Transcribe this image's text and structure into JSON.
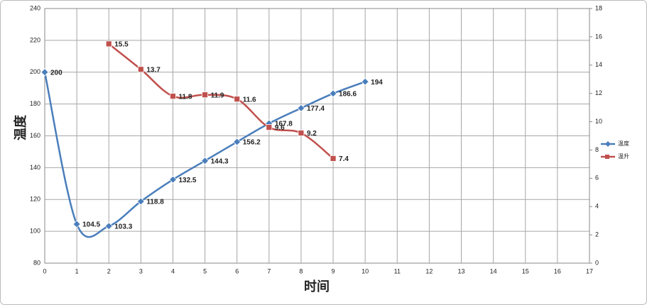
{
  "chart_data": {
    "type": "line",
    "x_label": "时间",
    "y_label": "温度",
    "xlim": [
      0,
      17
    ],
    "xticks": [
      0,
      1,
      2,
      3,
      4,
      5,
      6,
      7,
      8,
      9,
      10,
      11,
      12,
      13,
      14,
      15,
      16,
      17
    ],
    "ylim": [
      80,
      240
    ],
    "yticks": [
      80,
      100,
      120,
      140,
      160,
      180,
      200,
      220,
      240
    ],
    "y2lim": [
      0,
      18
    ],
    "y2ticks": [
      0,
      2,
      4,
      6,
      8,
      10,
      12,
      14,
      16,
      18
    ],
    "grid": true,
    "smooth": true,
    "legend": "right",
    "series": [
      {
        "name": "温度",
        "color": "#4a7ebb",
        "marker": "diamond",
        "x": [
          0,
          1,
          2,
          3,
          4,
          5,
          6,
          7,
          8,
          9,
          10
        ],
        "values": [
          200,
          104.5,
          103.3,
          118.8,
          132.5,
          144.3,
          156.2,
          167.8,
          177.4,
          186.6,
          194
        ]
      },
      {
        "name": "温升",
        "color": "#c0504d",
        "marker": "square",
        "axis": "y2",
        "x": [
          2,
          3,
          4,
          5,
          6,
          7,
          8,
          9
        ],
        "values": [
          15.5,
          13.7,
          11.8,
          11.9,
          11.6,
          9.6,
          9.2,
          7.4
        ]
      }
    ]
  }
}
